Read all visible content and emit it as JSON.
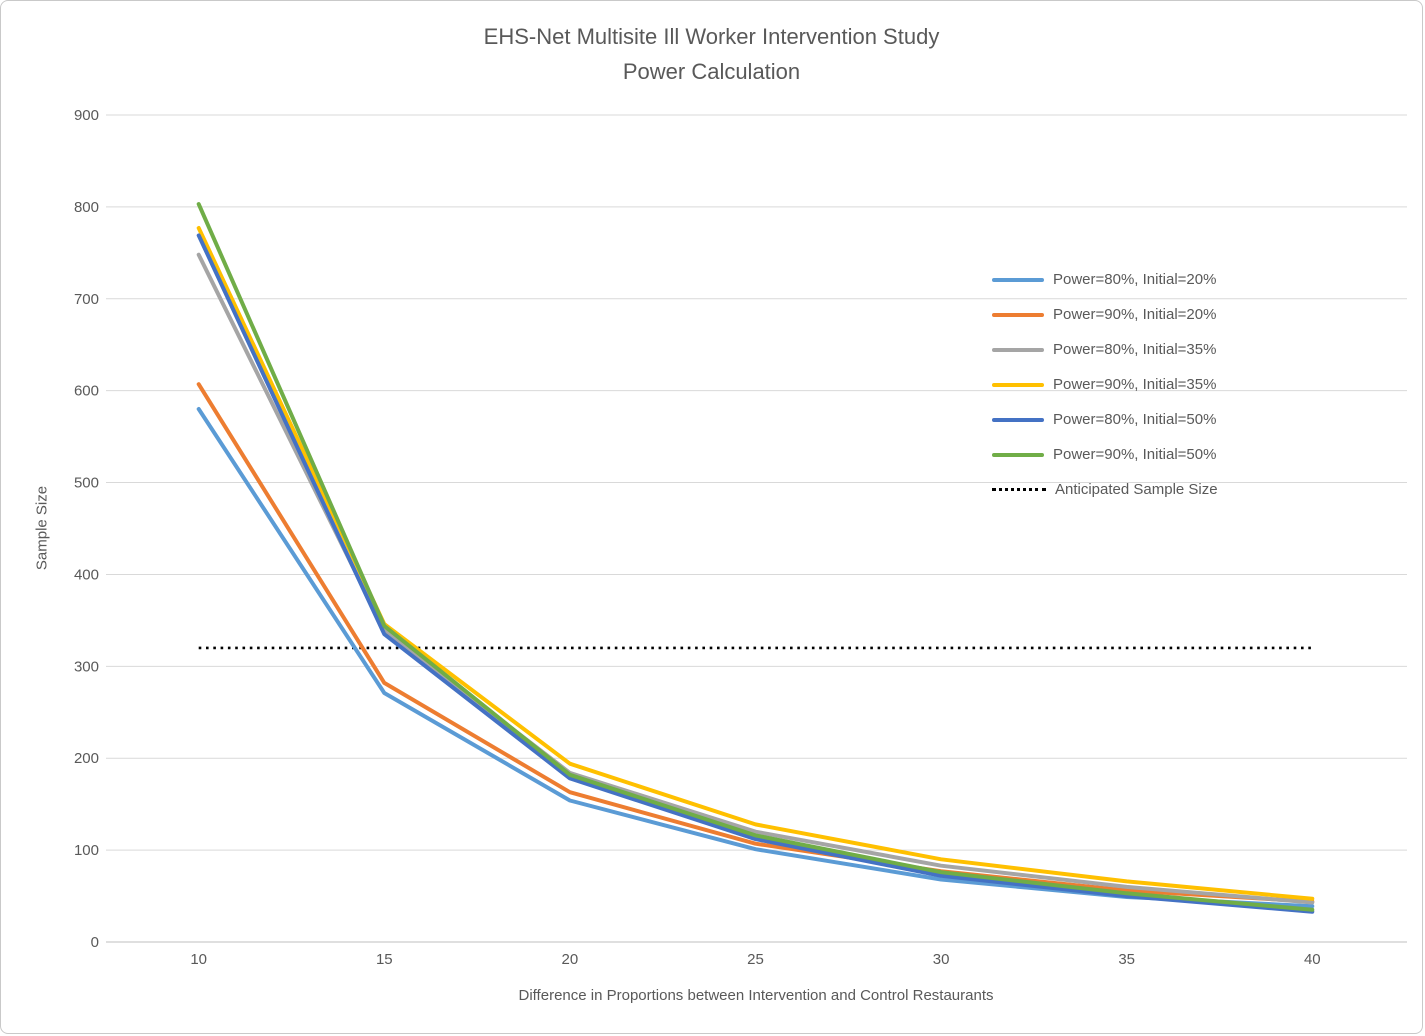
{
  "window": {
    "background": "#FFFFFF",
    "border_color": "#C9C9C9"
  },
  "chart_data": {
    "type": "line",
    "title_line1": "EHS-Net Multisite Ill Worker Intervention Study",
    "title_line2": "Power Calculation",
    "xlabel": "Difference in Proportions between Intervention and Control Restaurants",
    "ylabel": "Sample Size",
    "x": [
      10,
      15,
      20,
      25,
      30,
      35,
      40
    ],
    "y_ticks": [
      0,
      100,
      200,
      300,
      400,
      500,
      600,
      700,
      800,
      900
    ],
    "ylim": [
      0,
      900
    ],
    "grid": "horizontal-only",
    "legend_position": "right-inside",
    "text_color": "#595959",
    "gridline_color": "#D9D9D9",
    "axis_line_color": "#BFBFBF",
    "series": [
      {
        "name": "Power=80%, Initial=20%",
        "color": "#5B9BD5",
        "values": [
          580,
          271,
          154,
          101,
          68,
          49,
          39
        ]
      },
      {
        "name": "Power=90%, Initial=20%",
        "color": "#ED7D31",
        "values": [
          607,
          282,
          163,
          107,
          77,
          56,
          44
        ]
      },
      {
        "name": "Power=80%, Initial=35%",
        "color": "#A5A5A5",
        "values": [
          748,
          339,
          184,
          120,
          83,
          60,
          43
        ]
      },
      {
        "name": "Power=90%, Initial=35%",
        "color": "#FFC000",
        "values": [
          777,
          346,
          194,
          128,
          90,
          66,
          47
        ]
      },
      {
        "name": "Power=80%, Initial=50%",
        "color": "#4472C4",
        "values": [
          769,
          335,
          178,
          112,
          72,
          50,
          33
        ]
      },
      {
        "name": "Power=90%, Initial=50%",
        "color": "#70AD47",
        "values": [
          803,
          344,
          182,
          116,
          76,
          53,
          35
        ]
      }
    ],
    "reference_line": {
      "name": "Anticipated Sample Size",
      "value": 320,
      "color": "#000000",
      "style": "dotted"
    }
  }
}
